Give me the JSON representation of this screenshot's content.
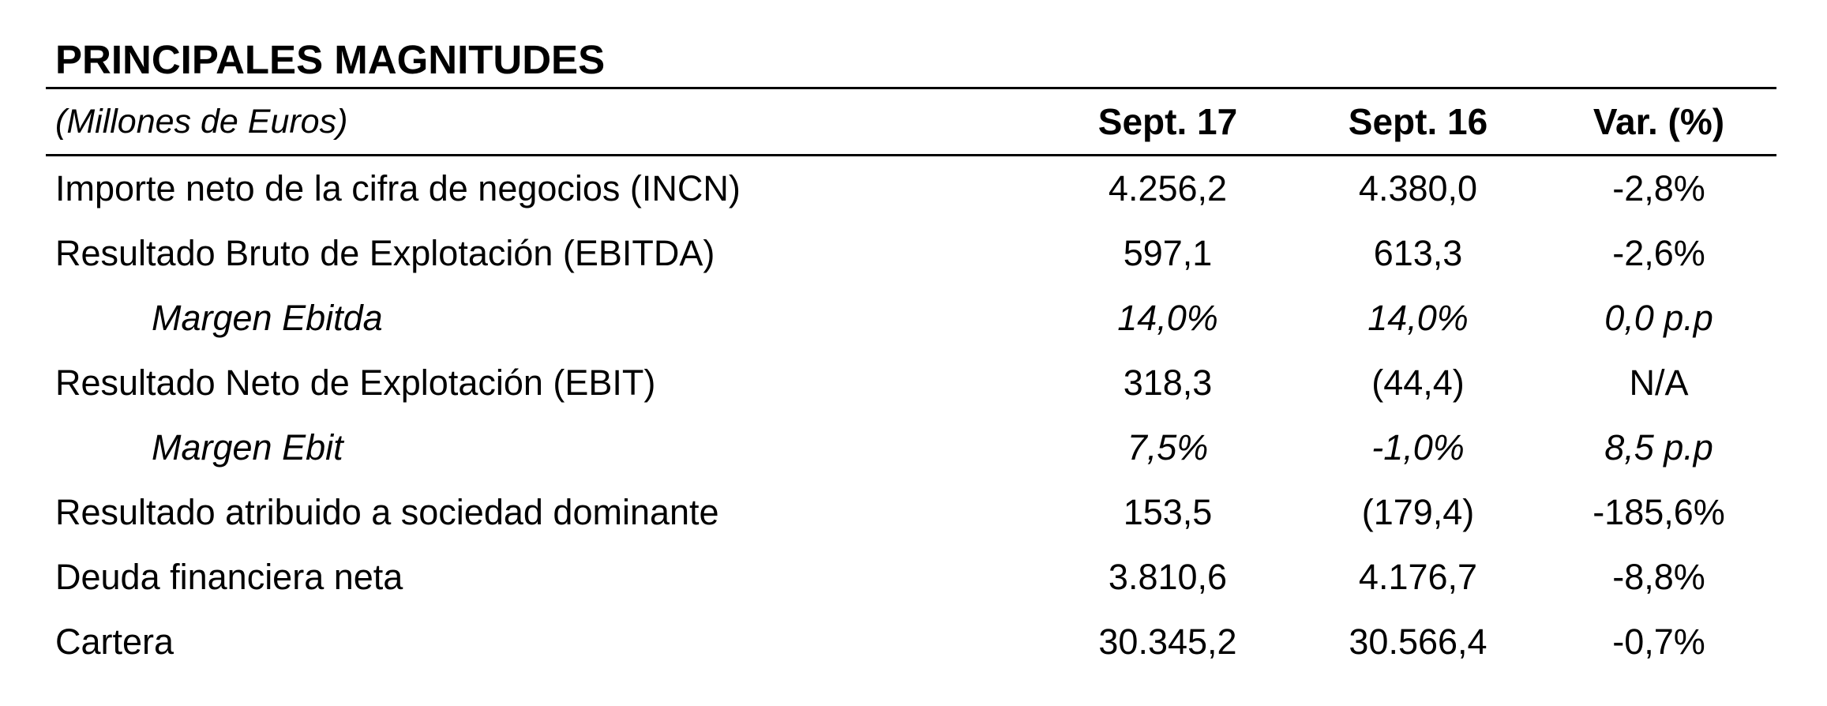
{
  "title": "PRINCIPALES MAGNITUDES",
  "unit_note": "(Millones de Euros)",
  "columns": [
    "Sept. 17",
    "Sept. 16",
    "Var. (%)"
  ],
  "rows": [
    {
      "label": "Importe neto de la cifra de negocios (INCN)",
      "sept17": "4.256,2",
      "sept16": "4.380,0",
      "var": "-2,8%"
    },
    {
      "label": "Resultado Bruto de Explotación (EBITDA)",
      "sept17": "597,1",
      "sept16": "613,3",
      "var": "-2,6%"
    },
    {
      "label": "Margen Ebitda",
      "sept17": "14,0%",
      "sept16": "14,0%",
      "var": "0,0 p.p"
    },
    {
      "label": "Resultado Neto de Explotación (EBIT)",
      "sept17": "318,3",
      "sept16": "(44,4)",
      "var": "N/A"
    },
    {
      "label": "Margen Ebit",
      "sept17": "7,5%",
      "sept16": "-1,0%",
      "var": "8,5 p.p"
    },
    {
      "label": "Resultado atribuido a sociedad dominante",
      "sept17": "153,5",
      "sept16": "(179,4)",
      "var": "-185,6%"
    },
    {
      "label": "Deuda financiera neta",
      "sept17": "3.810,6",
      "sept16": "4.176,7",
      "var": "-8,8%"
    },
    {
      "label": "Cartera",
      "sept17": "30.345,2",
      "sept16": "30.566,4",
      "var": "-0,7%"
    }
  ],
  "colors": {
    "text": "#000000",
    "background": "#ffffff",
    "rule": "#000000"
  }
}
